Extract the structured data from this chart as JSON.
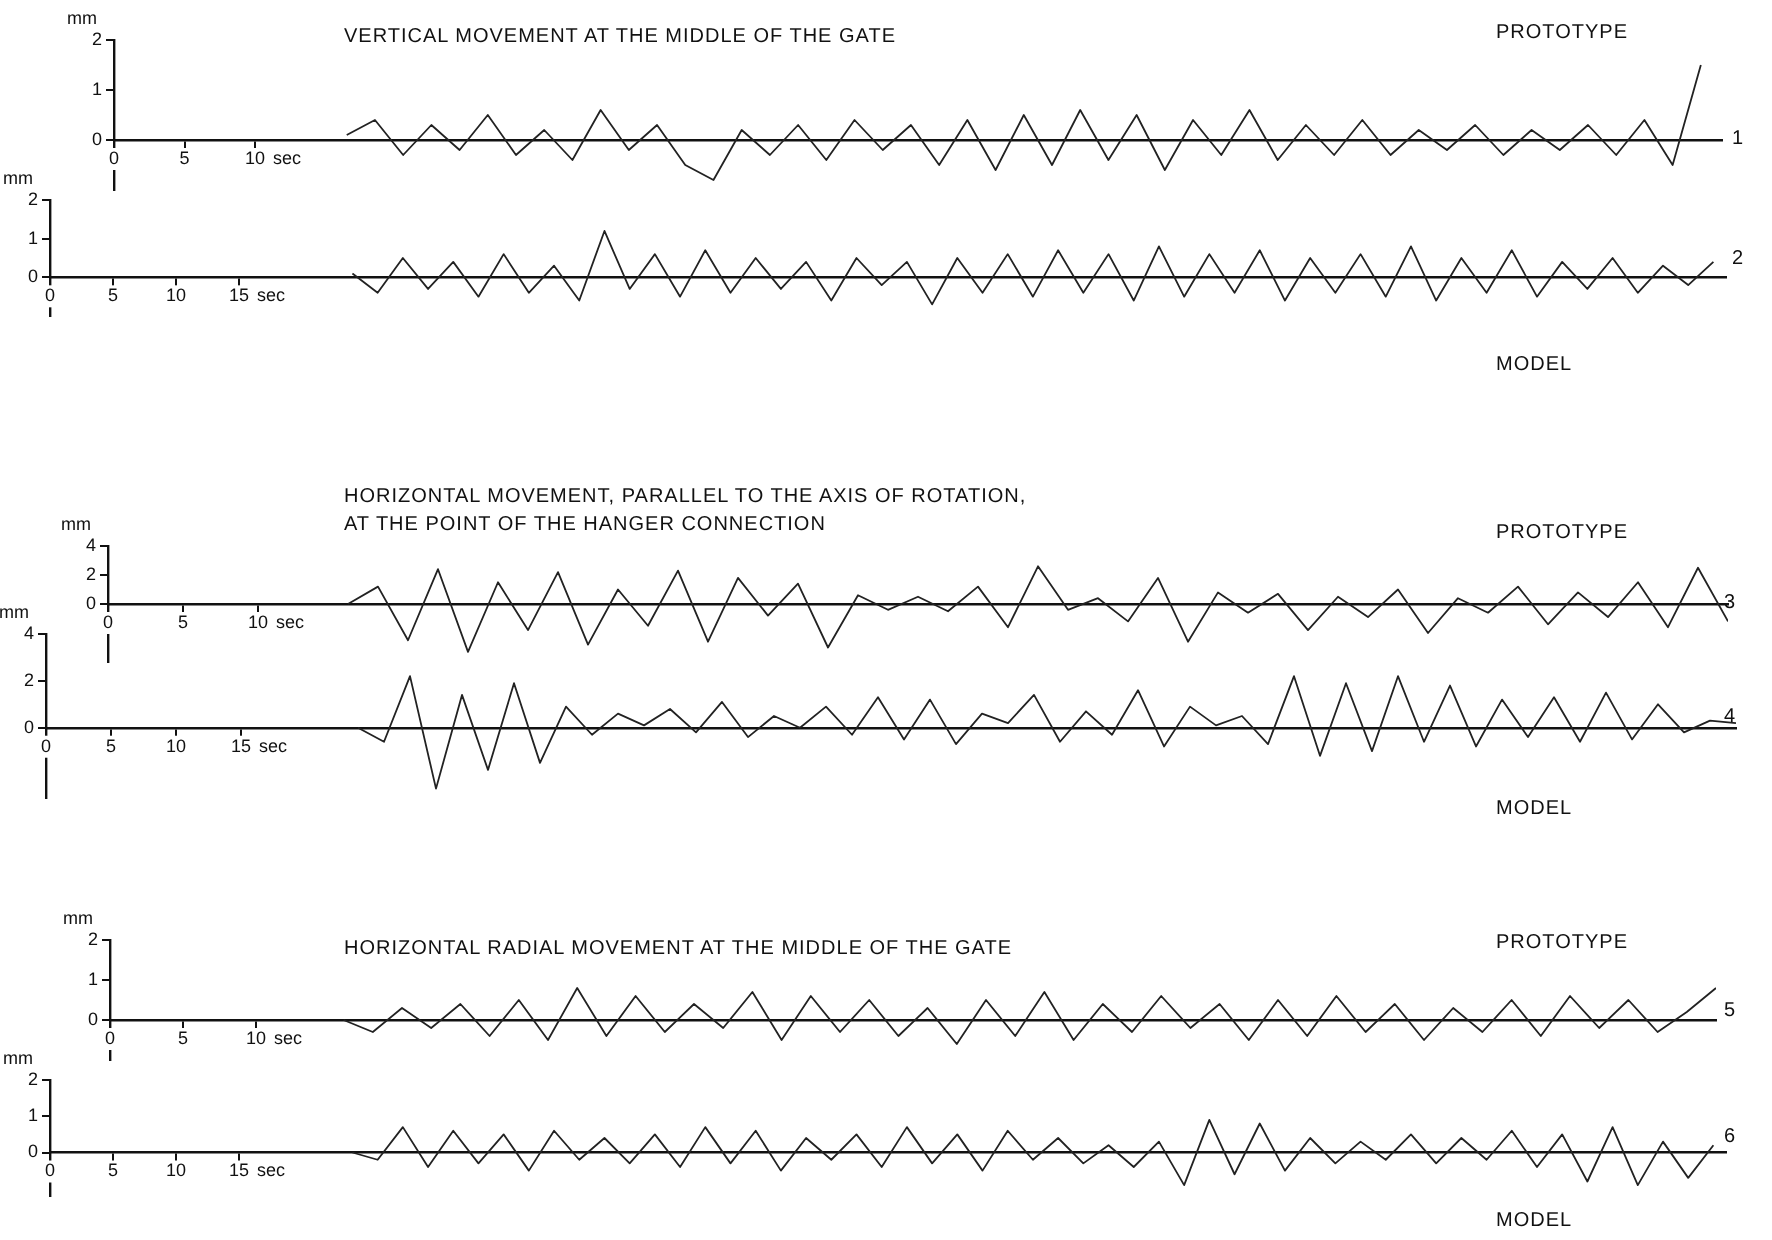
{
  "chart_data": [
    {
      "type": "line",
      "title": "VERTICAL MOVEMENT AT THE MIDDLE OF THE GATE",
      "ylabel": "mm",
      "annotations": [
        "PROTOTYPE",
        "1"
      ],
      "xlabel": "sec",
      "xlim": [
        0,
        114
      ],
      "xticks": [
        0,
        5,
        10
      ],
      "ylim": [
        -1,
        2
      ],
      "yticks": [
        0,
        1,
        2
      ],
      "marker": "none",
      "line_style": "solid",
      "series": [
        {
          "color": "#222222",
          "x": [
            16.5,
            18.5,
            20.5,
            22.5,
            24.5,
            26.5,
            28.5,
            30.5,
            32.5,
            34.5,
            36.5,
            38.5,
            40.5,
            42.5,
            44.5,
            46.5,
            48.5,
            50.5,
            52.5,
            54.5,
            56.5,
            58.5,
            60.5,
            62.5,
            64.5,
            66.5,
            68.5,
            70.5,
            72.5,
            74.5,
            76.5,
            78.5,
            80.5,
            82.5,
            84.5,
            86.5,
            88.5,
            90.5,
            92.5,
            94.5,
            96.5,
            98.5,
            100.5,
            102.5,
            104.5,
            106.5,
            108.5,
            110.5,
            112.5
          ],
          "values": [
            0.1,
            0.4,
            -0.3,
            0.3,
            -0.2,
            0.5,
            -0.3,
            0.2,
            -0.4,
            0.6,
            -0.2,
            0.3,
            -0.5,
            -0.8,
            0.2,
            -0.3,
            0.3,
            -0.4,
            0.4,
            -0.2,
            0.3,
            -0.5,
            0.4,
            -0.6,
            0.5,
            -0.5,
            0.6,
            -0.4,
            0.5,
            -0.6,
            0.4,
            -0.3,
            0.6,
            -0.4,
            0.3,
            -0.3,
            0.4,
            -0.3,
            0.2,
            -0.2,
            0.3,
            -0.3,
            0.2,
            -0.2,
            0.3,
            -0.3,
            0.4,
            -0.5,
            1.5
          ]
        }
      ]
    },
    {
      "type": "line",
      "ylabel": "mm",
      "annotations": [
        "2",
        "MODEL"
      ],
      "xlabel": "sec",
      "xlim": [
        0,
        133
      ],
      "xticks": [
        0,
        5,
        10,
        15
      ],
      "ylim": [
        -1,
        2
      ],
      "yticks": [
        0,
        1,
        2
      ],
      "marker": "none",
      "line_style": "solid",
      "series": [
        {
          "color": "#222222",
          "x": [
            24,
            26,
            28,
            30,
            32,
            34,
            36,
            38,
            40,
            42,
            44,
            46,
            48,
            50,
            52,
            54,
            56,
            58,
            60,
            62,
            64,
            66,
            68,
            70,
            72,
            74,
            76,
            78,
            80,
            82,
            84,
            86,
            88,
            90,
            92,
            94,
            96,
            98,
            100,
            102,
            104,
            106,
            108,
            110,
            112,
            114,
            116,
            118,
            120,
            122,
            124,
            126,
            128,
            130,
            132
          ],
          "values": [
            0.1,
            -0.4,
            0.5,
            -0.3,
            0.4,
            -0.5,
            0.6,
            -0.4,
            0.3,
            -0.6,
            1.2,
            -0.3,
            0.6,
            -0.5,
            0.7,
            -0.4,
            0.5,
            -0.3,
            0.4,
            -0.6,
            0.5,
            -0.2,
            0.4,
            -0.7,
            0.5,
            -0.4,
            0.6,
            -0.5,
            0.7,
            -0.4,
            0.6,
            -0.6,
            0.8,
            -0.5,
            0.6,
            -0.4,
            0.7,
            -0.6,
            0.5,
            -0.4,
            0.6,
            -0.5,
            0.8,
            -0.6,
            0.5,
            -0.4,
            0.7,
            -0.5,
            0.4,
            -0.3,
            0.5,
            -0.4,
            0.3,
            -0.2,
            0.4
          ]
        }
      ]
    },
    {
      "type": "line",
      "title": "HORIZONTAL MOVEMENT, PARALLEL TO THE AXIS OF ROTATION,\nAT THE POINT OF THE HANGER CONNECTION",
      "ylabel": "mm",
      "annotations": [
        "PROTOTYPE",
        "3"
      ],
      "xlabel": "sec",
      "xlim": [
        0,
        108
      ],
      "xticks": [
        0,
        5,
        10
      ],
      "ylim": [
        -4,
        4
      ],
      "yticks": [
        0,
        2,
        4
      ],
      "marker": "none",
      "line_style": "solid",
      "series": [
        {
          "color": "#222222",
          "x": [
            16,
            18,
            20,
            22,
            24,
            26,
            28,
            30,
            32,
            34,
            36,
            38,
            40,
            42,
            44,
            46,
            48,
            50,
            52,
            54,
            56,
            58,
            60,
            62,
            64,
            66,
            68,
            70,
            72,
            74,
            76,
            78,
            80,
            82,
            84,
            86,
            88,
            90,
            92,
            94,
            96,
            98,
            100,
            102,
            104,
            106,
            108
          ],
          "values": [
            0,
            1.2,
            -2.5,
            2.4,
            -3.3,
            1.5,
            -1.8,
            2.2,
            -2.8,
            1.0,
            -1.5,
            2.3,
            -2.6,
            1.8,
            -0.8,
            1.4,
            -3.0,
            0.6,
            -0.4,
            0.5,
            -0.5,
            1.2,
            -1.6,
            2.6,
            -0.4,
            0.4,
            -1.2,
            1.8,
            -2.6,
            0.8,
            -0.6,
            0.7,
            -1.8,
            0.5,
            -0.9,
            1.0,
            -2.0,
            0.4,
            -0.6,
            1.2,
            -1.4,
            0.8,
            -0.9,
            1.5,
            -1.6,
            2.5,
            -1.2
          ]
        }
      ]
    },
    {
      "type": "line",
      "ylabel": "mm",
      "annotations": [
        "4",
        "MODEL"
      ],
      "xlabel": "sec",
      "xlim": [
        0,
        130
      ],
      "xticks": [
        0,
        5,
        10,
        15
      ],
      "ylim": [
        -3,
        4
      ],
      "yticks": [
        0,
        2,
        4
      ],
      "marker": "none",
      "line_style": "solid",
      "series": [
        {
          "color": "#222222",
          "x": [
            24,
            26,
            28,
            30,
            32,
            34,
            36,
            38,
            40,
            42,
            44,
            46,
            48,
            50,
            52,
            54,
            56,
            58,
            60,
            62,
            64,
            66,
            68,
            70,
            72,
            74,
            76,
            78,
            80,
            82,
            84,
            86,
            88,
            90,
            92,
            94,
            96,
            98,
            100,
            102,
            104,
            106,
            108,
            110,
            112,
            114,
            116,
            118,
            120,
            122,
            124,
            126,
            128,
            130
          ],
          "values": [
            0,
            -0.6,
            2.2,
            -2.6,
            1.4,
            -1.8,
            1.9,
            -1.5,
            0.9,
            -0.3,
            0.6,
            0.1,
            0.8,
            -0.2,
            1.1,
            -0.4,
            0.5,
            0.0,
            0.9,
            -0.3,
            1.3,
            -0.5,
            1.2,
            -0.7,
            0.6,
            0.2,
            1.4,
            -0.6,
            0.7,
            -0.3,
            1.6,
            -0.8,
            0.9,
            0.1,
            0.5,
            -0.7,
            2.2,
            -1.2,
            1.9,
            -1.0,
            2.2,
            -0.6,
            1.8,
            -0.8,
            1.2,
            -0.4,
            1.3,
            -0.6,
            1.5,
            -0.5,
            1.0,
            -0.2,
            0.3,
            0.2
          ]
        }
      ]
    },
    {
      "type": "line",
      "title": "HORIZONTAL RADIAL MOVEMENT AT THE MIDDLE OF THE GATE",
      "ylabel": "mm",
      "annotations": [
        "PROTOTYPE",
        "5"
      ],
      "xlabel": "sec",
      "xlim": [
        0,
        110
      ],
      "xticks": [
        0,
        5,
        10
      ],
      "ylim": [
        -1,
        2
      ],
      "yticks": [
        0,
        1,
        2
      ],
      "marker": "none",
      "line_style": "solid",
      "series": [
        {
          "color": "#222222",
          "x": [
            16,
            18,
            20,
            22,
            24,
            26,
            28,
            30,
            32,
            34,
            36,
            38,
            40,
            42,
            44,
            46,
            48,
            50,
            52,
            54,
            56,
            58,
            60,
            62,
            64,
            66,
            68,
            70,
            72,
            74,
            76,
            78,
            80,
            82,
            84,
            86,
            88,
            90,
            92,
            94,
            96,
            98,
            100,
            102,
            104,
            106,
            108,
            110
          ],
          "values": [
            0,
            -0.3,
            0.3,
            -0.2,
            0.4,
            -0.4,
            0.5,
            -0.5,
            0.8,
            -0.4,
            0.6,
            -0.3,
            0.4,
            -0.2,
            0.7,
            -0.5,
            0.6,
            -0.3,
            0.5,
            -0.4,
            0.3,
            -0.6,
            0.5,
            -0.4,
            0.7,
            -0.5,
            0.4,
            -0.3,
            0.6,
            -0.2,
            0.4,
            -0.5,
            0.5,
            -0.4,
            0.6,
            -0.3,
            0.4,
            -0.5,
            0.3,
            -0.3,
            0.5,
            -0.4,
            0.6,
            -0.2,
            0.5,
            -0.3,
            0.2,
            0.8
          ]
        }
      ]
    },
    {
      "type": "line",
      "ylabel": "mm",
      "annotations": [
        "6",
        "MODEL"
      ],
      "xlabel": "sec",
      "xlim": [
        0,
        133
      ],
      "xticks": [
        0,
        5,
        10,
        15
      ],
      "ylim": [
        -1.2,
        2
      ],
      "yticks": [
        0,
        1,
        2
      ],
      "marker": "none",
      "line_style": "solid",
      "series": [
        {
          "color": "#222222",
          "x": [
            24,
            26,
            28,
            30,
            32,
            34,
            36,
            38,
            40,
            42,
            44,
            46,
            48,
            50,
            52,
            54,
            56,
            58,
            60,
            62,
            64,
            66,
            68,
            70,
            72,
            74,
            76,
            78,
            80,
            82,
            84,
            86,
            88,
            90,
            92,
            94,
            96,
            98,
            100,
            102,
            104,
            106,
            108,
            110,
            112,
            114,
            116,
            118,
            120,
            122,
            124,
            126,
            128,
            130,
            132
          ],
          "values": [
            0,
            -0.2,
            0.7,
            -0.4,
            0.6,
            -0.3,
            0.5,
            -0.5,
            0.6,
            -0.2,
            0.4,
            -0.3,
            0.5,
            -0.4,
            0.7,
            -0.3,
            0.6,
            -0.5,
            0.4,
            -0.2,
            0.5,
            -0.4,
            0.7,
            -0.3,
            0.5,
            -0.5,
            0.6,
            -0.2,
            0.4,
            -0.3,
            0.2,
            -0.4,
            0.3,
            -0.9,
            0.9,
            -0.6,
            0.8,
            -0.5,
            0.4,
            -0.3,
            0.3,
            -0.2,
            0.5,
            -0.3,
            0.4,
            -0.2,
            0.6,
            -0.4,
            0.5,
            -0.8,
            0.7,
            -0.9,
            0.3,
            -0.7,
            0.2
          ]
        }
      ]
    }
  ]
}
